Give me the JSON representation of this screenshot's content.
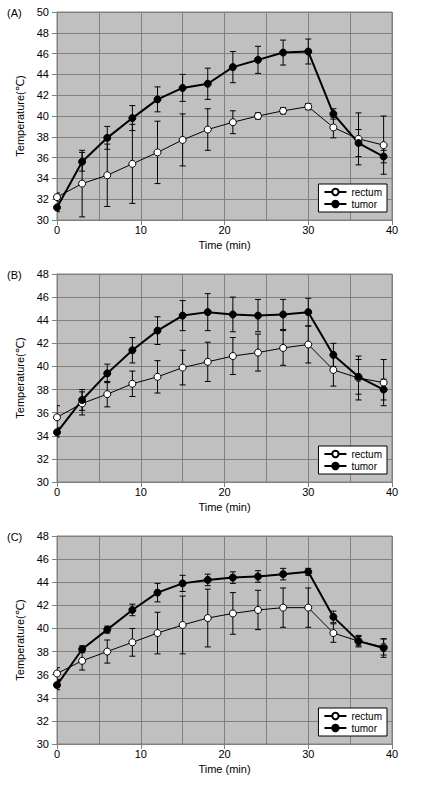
{
  "chart_data": [
    {
      "type": "line",
      "title": "(A)",
      "x_label": "Time (min)",
      "y_label": "Temperature(℃)",
      "x": [
        0,
        3,
        6,
        9,
        12,
        15,
        18,
        21,
        24,
        27,
        30,
        33,
        36,
        39
      ],
      "xlim": [
        0,
        40
      ],
      "xticks": [
        0,
        10,
        20,
        30,
        40
      ],
      "ylim": [
        30,
        50
      ],
      "yticks": [
        30,
        32,
        34,
        36,
        38,
        40,
        42,
        44,
        46,
        48,
        50
      ],
      "grid": true,
      "legend": "lower right",
      "series": [
        {
          "name": "rectum",
          "color": "#000000",
          "marker": "circle_open",
          "values": [
            32.2,
            33.5,
            34.3,
            35.4,
            36.5,
            37.7,
            38.7,
            39.4,
            40.0,
            40.5,
            40.9,
            38.9,
            37.8,
            37.2
          ],
          "errors": [
            0.4,
            3.2,
            3.0,
            3.8,
            3.0,
            2.5,
            2.0,
            1.1,
            0.3,
            0.3,
            0.3,
            1.0,
            2.5,
            2.8
          ]
        },
        {
          "name": "tumor",
          "color": "#000000",
          "marker": "circle",
          "values": [
            31.2,
            35.6,
            37.9,
            39.8,
            41.6,
            42.7,
            43.1,
            44.7,
            45.4,
            46.1,
            46.2,
            40.2,
            37.4,
            36.1
          ],
          "errors": [
            0.4,
            0.9,
            1.1,
            1.2,
            1.2,
            1.3,
            1.5,
            1.5,
            1.3,
            1.2,
            1.2,
            0.5,
            1.3,
            0.6
          ]
        }
      ]
    },
    {
      "type": "line",
      "title": "(B)",
      "x_label": "Time (min)",
      "y_label": "Temperature(℃)",
      "x": [
        0,
        3,
        6,
        9,
        12,
        15,
        18,
        21,
        24,
        27,
        30,
        33,
        36,
        39
      ],
      "xlim": [
        0,
        40
      ],
      "xticks": [
        0,
        10,
        20,
        30,
        40
      ],
      "ylim": [
        30,
        48
      ],
      "yticks": [
        30,
        32,
        34,
        36,
        38,
        40,
        42,
        44,
        46,
        48
      ],
      "grid": true,
      "legend": "lower right",
      "series": [
        {
          "name": "rectum",
          "color": "#000000",
          "marker": "circle_open",
          "values": [
            35.6,
            36.8,
            37.6,
            38.5,
            39.1,
            39.9,
            40.4,
            40.9,
            41.2,
            41.6,
            41.9,
            39.7,
            39.0,
            38.6
          ],
          "errors": [
            1.0,
            1.0,
            1.1,
            1.1,
            1.4,
            1.5,
            1.7,
            1.6,
            1.6,
            1.5,
            1.6,
            1.4,
            1.9,
            2.0
          ]
        },
        {
          "name": "tumor",
          "color": "#000000",
          "marker": "circle",
          "values": [
            34.3,
            37.1,
            39.4,
            41.4,
            43.1,
            44.4,
            44.7,
            44.5,
            44.4,
            44.5,
            44.7,
            41.0,
            39.1,
            38.0
          ],
          "errors": [
            0.4,
            0.9,
            0.8,
            1.1,
            1.2,
            1.3,
            1.6,
            1.5,
            1.4,
            1.3,
            1.2,
            1.0,
            1.5,
            0.9
          ]
        }
      ]
    },
    {
      "type": "line",
      "title": "(C)",
      "x_label": "Time (min)",
      "y_label": "Temperature(℃)",
      "x": [
        0,
        3,
        6,
        9,
        12,
        15,
        18,
        21,
        24,
        27,
        30,
        33,
        36,
        39
      ],
      "xlim": [
        0,
        40
      ],
      "xticks": [
        0,
        10,
        20,
        30,
        40
      ],
      "ylim": [
        30,
        48
      ],
      "yticks": [
        30,
        32,
        34,
        36,
        38,
        40,
        42,
        44,
        46,
        48
      ],
      "grid": true,
      "legend": "lower right",
      "series": [
        {
          "name": "rectum",
          "color": "#000000",
          "marker": "circle_open",
          "values": [
            36.1,
            37.2,
            38.0,
            38.8,
            39.6,
            40.3,
            40.9,
            41.3,
            41.6,
            41.8,
            41.8,
            39.6,
            38.9,
            38.4
          ],
          "errors": [
            0.5,
            0.8,
            1.0,
            1.2,
            1.8,
            2.5,
            2.5,
            1.8,
            1.7,
            1.7,
            1.7,
            0.8,
            0.5,
            0.7
          ]
        },
        {
          "name": "tumor",
          "color": "#000000",
          "marker": "circle",
          "values": [
            35.1,
            38.2,
            39.9,
            41.6,
            43.1,
            43.9,
            44.2,
            44.4,
            44.5,
            44.7,
            44.9,
            41.0,
            38.9,
            38.3
          ],
          "errors": [
            0.4,
            0.3,
            0.3,
            0.5,
            0.8,
            0.7,
            0.5,
            0.5,
            0.5,
            0.5,
            0.3,
            0.5,
            0.4,
            0.8
          ]
        }
      ]
    }
  ]
}
